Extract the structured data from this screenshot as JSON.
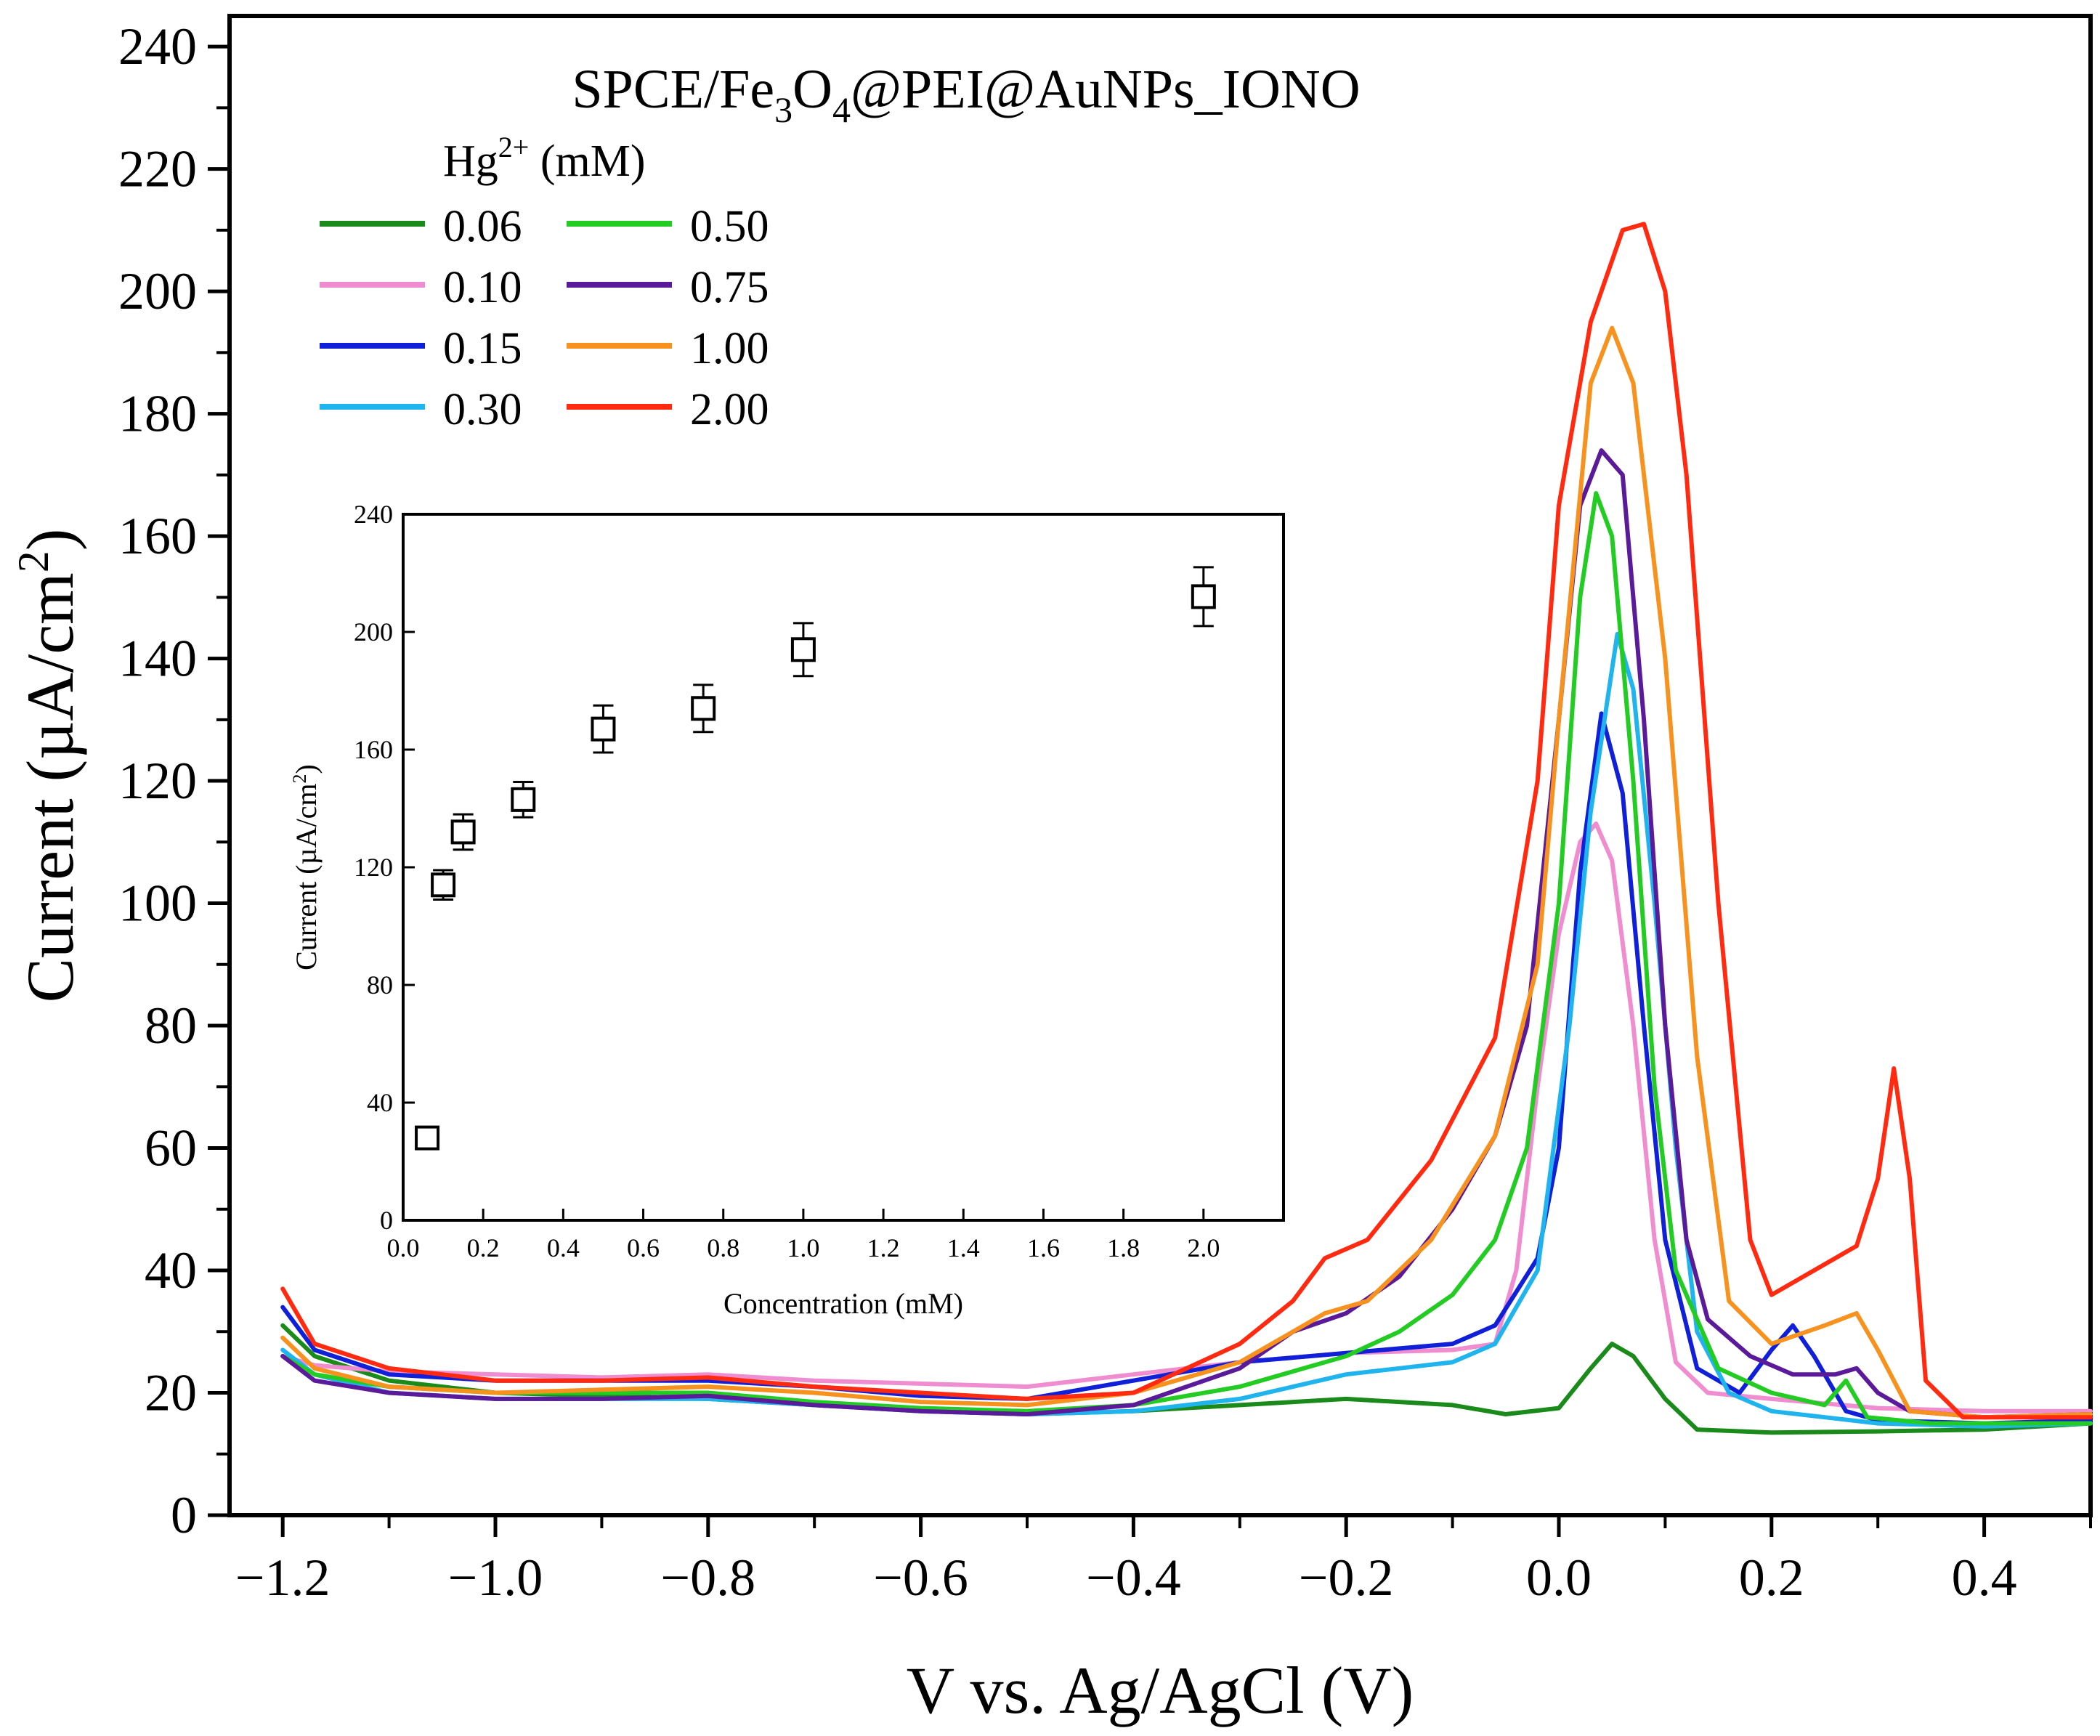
{
  "chart_data": [
    {
      "type": "line",
      "title_parts": {
        "a": "SPCE/Fe",
        "b": "3",
        "c": "O",
        "d": "4",
        "e": "@PEI@AuNPs_IONO"
      },
      "xlabel": "V vs. Ag/AgCl (V)",
      "ylabel_parts": {
        "a": "Current (µA/cm",
        "b": "2",
        "c": ")"
      },
      "xlim": [
        -1.25,
        0.5
      ],
      "ylim": [
        0,
        245
      ],
      "xticks": [
        -1.2,
        -1.0,
        -0.8,
        -0.6,
        -0.4,
        -0.2,
        0.0,
        0.2,
        0.4
      ],
      "xtick_labels": [
        "−1.2",
        "−1.0",
        "−0.8",
        "−0.6",
        "−0.4",
        "−0.2",
        "0.0",
        "0.2",
        "0.4"
      ],
      "yticks": [
        0,
        20,
        40,
        60,
        80,
        100,
        120,
        140,
        160,
        180,
        200,
        220,
        240
      ],
      "ytick_labels": [
        "0",
        "20",
        "40",
        "60",
        "80",
        "100",
        "120",
        "140",
        "160",
        "180",
        "200",
        "220",
        "240"
      ],
      "legend_title_parts": {
        "a": "Hg",
        "b": "2+",
        "c": " (mM)"
      },
      "legend_placement": "top-left",
      "series": [
        {
          "name": "0.06",
          "color": "#1a8a1a",
          "points": [
            [
              -1.2,
              31
            ],
            [
              -1.17,
              26
            ],
            [
              -1.1,
              22
            ],
            [
              -1.0,
              20
            ],
            [
              -0.9,
              19.5
            ],
            [
              -0.8,
              19
            ],
            [
              -0.7,
              18
            ],
            [
              -0.6,
              17
            ],
            [
              -0.5,
              16.5
            ],
            [
              -0.4,
              17
            ],
            [
              -0.3,
              18
            ],
            [
              -0.2,
              19
            ],
            [
              -0.1,
              18
            ],
            [
              -0.05,
              16.5
            ],
            [
              0.0,
              17.5
            ],
            [
              0.03,
              24
            ],
            [
              0.05,
              28
            ],
            [
              0.07,
              26
            ],
            [
              0.1,
              19
            ],
            [
              0.13,
              14
            ],
            [
              0.2,
              13.5
            ],
            [
              0.3,
              13.7
            ],
            [
              0.4,
              14
            ],
            [
              0.5,
              15
            ]
          ]
        },
        {
          "name": "0.10",
          "color": "#f08cd0",
          "points": [
            [
              -1.2,
              26
            ],
            [
              -1.17,
              24.5
            ],
            [
              -1.1,
              23.5
            ],
            [
              -1.0,
              23
            ],
            [
              -0.9,
              22.5
            ],
            [
              -0.8,
              23
            ],
            [
              -0.7,
              22
            ],
            [
              -0.6,
              21.5
            ],
            [
              -0.5,
              21
            ],
            [
              -0.4,
              23
            ],
            [
              -0.3,
              25
            ],
            [
              -0.2,
              26.5
            ],
            [
              -0.1,
              27
            ],
            [
              -0.06,
              28
            ],
            [
              -0.04,
              40
            ],
            [
              -0.02,
              70
            ],
            [
              0.0,
              95
            ],
            [
              0.02,
              110
            ],
            [
              0.035,
              113
            ],
            [
              0.05,
              107
            ],
            [
              0.07,
              80
            ],
            [
              0.09,
              45
            ],
            [
              0.11,
              25
            ],
            [
              0.14,
              20
            ],
            [
              0.2,
              19
            ],
            [
              0.3,
              17.5
            ],
            [
              0.4,
              17
            ],
            [
              0.5,
              17
            ]
          ]
        },
        {
          "name": "0.15",
          "color": "#1020d8",
          "points": [
            [
              -1.2,
              34
            ],
            [
              -1.17,
              27
            ],
            [
              -1.1,
              23
            ],
            [
              -1.0,
              22
            ],
            [
              -0.9,
              22
            ],
            [
              -0.8,
              22
            ],
            [
              -0.7,
              21
            ],
            [
              -0.6,
              19.5
            ],
            [
              -0.5,
              19
            ],
            [
              -0.4,
              22
            ],
            [
              -0.3,
              25
            ],
            [
              -0.2,
              26.5
            ],
            [
              -0.1,
              28
            ],
            [
              -0.06,
              31
            ],
            [
              -0.02,
              42
            ],
            [
              0.0,
              60
            ],
            [
              0.02,
              105
            ],
            [
              0.04,
              131
            ],
            [
              0.06,
              118
            ],
            [
              0.08,
              80
            ],
            [
              0.1,
              45
            ],
            [
              0.13,
              24
            ],
            [
              0.17,
              20
            ],
            [
              0.2,
              27
            ],
            [
              0.22,
              31
            ],
            [
              0.24,
              26
            ],
            [
              0.27,
              17
            ],
            [
              0.3,
              15.5
            ],
            [
              0.4,
              15
            ],
            [
              0.5,
              15.5
            ]
          ]
        },
        {
          "name": "0.30",
          "color": "#1fb4ee",
          "points": [
            [
              -1.2,
              27
            ],
            [
              -1.17,
              23
            ],
            [
              -1.1,
              20
            ],
            [
              -1.0,
              19
            ],
            [
              -0.9,
              19
            ],
            [
              -0.8,
              19
            ],
            [
              -0.7,
              18
            ],
            [
              -0.6,
              17
            ],
            [
              -0.5,
              16.5
            ],
            [
              -0.4,
              17
            ],
            [
              -0.3,
              19
            ],
            [
              -0.2,
              23
            ],
            [
              -0.15,
              24
            ],
            [
              -0.1,
              25
            ],
            [
              -0.06,
              28
            ],
            [
              -0.02,
              40
            ],
            [
              0.01,
              80
            ],
            [
              0.03,
              115
            ],
            [
              0.055,
              144
            ],
            [
              0.07,
              135
            ],
            [
              0.09,
              100
            ],
            [
              0.11,
              60
            ],
            [
              0.13,
              30
            ],
            [
              0.16,
              20
            ],
            [
              0.2,
              17
            ],
            [
              0.3,
              15
            ],
            [
              0.4,
              14.5
            ],
            [
              0.5,
              15
            ]
          ]
        },
        {
          "name": "0.50",
          "color": "#22cc22",
          "points": [
            [
              -1.2,
              26
            ],
            [
              -1.17,
              23
            ],
            [
              -1.1,
              21
            ],
            [
              -1.0,
              20
            ],
            [
              -0.9,
              20
            ],
            [
              -0.8,
              20
            ],
            [
              -0.7,
              18.5
            ],
            [
              -0.6,
              17.5
            ],
            [
              -0.5,
              17
            ],
            [
              -0.4,
              18
            ],
            [
              -0.3,
              21
            ],
            [
              -0.2,
              26
            ],
            [
              -0.15,
              30
            ],
            [
              -0.1,
              36
            ],
            [
              -0.06,
              45
            ],
            [
              -0.03,
              60
            ],
            [
              0.0,
              100
            ],
            [
              0.02,
              150
            ],
            [
              0.035,
              167
            ],
            [
              0.05,
              160
            ],
            [
              0.07,
              120
            ],
            [
              0.09,
              70
            ],
            [
              0.11,
              40
            ],
            [
              0.15,
              24
            ],
            [
              0.2,
              20
            ],
            [
              0.25,
              18
            ],
            [
              0.27,
              22
            ],
            [
              0.29,
              16
            ],
            [
              0.35,
              15
            ],
            [
              0.4,
              15
            ],
            [
              0.5,
              15
            ]
          ]
        },
        {
          "name": "0.75",
          "color": "#5a1a9a",
          "points": [
            [
              -1.2,
              26
            ],
            [
              -1.17,
              22
            ],
            [
              -1.1,
              20
            ],
            [
              -1.0,
              19
            ],
            [
              -0.9,
              19
            ],
            [
              -0.8,
              19.5
            ],
            [
              -0.7,
              18
            ],
            [
              -0.6,
              17
            ],
            [
              -0.5,
              16.5
            ],
            [
              -0.4,
              18
            ],
            [
              -0.3,
              24
            ],
            [
              -0.25,
              30
            ],
            [
              -0.2,
              33
            ],
            [
              -0.15,
              39
            ],
            [
              -0.1,
              50
            ],
            [
              -0.06,
              62
            ],
            [
              -0.03,
              80
            ],
            [
              0.0,
              130
            ],
            [
              0.02,
              165
            ],
            [
              0.04,
              174
            ],
            [
              0.06,
              170
            ],
            [
              0.08,
              130
            ],
            [
              0.1,
              80
            ],
            [
              0.12,
              45
            ],
            [
              0.14,
              32
            ],
            [
              0.18,
              26
            ],
            [
              0.22,
              23
            ],
            [
              0.26,
              23
            ],
            [
              0.28,
              24
            ],
            [
              0.3,
              20
            ],
            [
              0.33,
              17
            ],
            [
              0.4,
              16
            ],
            [
              0.5,
              16.5
            ]
          ]
        },
        {
          "name": "1.00",
          "color": "#f7921e",
          "points": [
            [
              -1.2,
              29
            ],
            [
              -1.17,
              24
            ],
            [
              -1.1,
              21
            ],
            [
              -1.0,
              20
            ],
            [
              -0.9,
              20.5
            ],
            [
              -0.8,
              21
            ],
            [
              -0.7,
              20
            ],
            [
              -0.6,
              18.5
            ],
            [
              -0.5,
              18
            ],
            [
              -0.4,
              20
            ],
            [
              -0.3,
              25
            ],
            [
              -0.25,
              30
            ],
            [
              -0.22,
              33
            ],
            [
              -0.18,
              35
            ],
            [
              -0.12,
              45
            ],
            [
              -0.06,
              62
            ],
            [
              -0.02,
              90
            ],
            [
              0.0,
              130
            ],
            [
              0.03,
              185
            ],
            [
              0.05,
              194
            ],
            [
              0.07,
              185
            ],
            [
              0.1,
              140
            ],
            [
              0.13,
              75
            ],
            [
              0.16,
              35
            ],
            [
              0.2,
              28
            ],
            [
              0.25,
              31
            ],
            [
              0.28,
              33
            ],
            [
              0.3,
              27
            ],
            [
              0.33,
              17
            ],
            [
              0.4,
              16
            ],
            [
              0.5,
              16.5
            ]
          ]
        },
        {
          "name": "2.00",
          "color": "#ff2a10",
          "points": [
            [
              -1.2,
              37
            ],
            [
              -1.17,
              28
            ],
            [
              -1.1,
              24
            ],
            [
              -1.0,
              22
            ],
            [
              -0.9,
              22
            ],
            [
              -0.8,
              22.5
            ],
            [
              -0.7,
              21
            ],
            [
              -0.6,
              20
            ],
            [
              -0.5,
              19
            ],
            [
              -0.4,
              20
            ],
            [
              -0.3,
              28
            ],
            [
              -0.25,
              35
            ],
            [
              -0.22,
              42
            ],
            [
              -0.18,
              45
            ],
            [
              -0.12,
              58
            ],
            [
              -0.06,
              78
            ],
            [
              -0.02,
              120
            ],
            [
              0.0,
              165
            ],
            [
              0.03,
              195
            ],
            [
              0.06,
              210
            ],
            [
              0.08,
              211
            ],
            [
              0.1,
              200
            ],
            [
              0.12,
              170
            ],
            [
              0.15,
              100
            ],
            [
              0.18,
              45
            ],
            [
              0.2,
              36
            ],
            [
              0.24,
              40
            ],
            [
              0.28,
              44
            ],
            [
              0.3,
              55
            ],
            [
              0.315,
              73
            ],
            [
              0.33,
              55
            ],
            [
              0.345,
              22
            ],
            [
              0.38,
              16
            ],
            [
              0.5,
              16
            ]
          ]
        }
      ]
    },
    {
      "type": "scatter",
      "panel": "inset",
      "xlabel": "Concentration (mM)",
      "ylabel_parts": {
        "a": "Current (µA/cm",
        "b": "2",
        "c": ")"
      },
      "xlim": [
        0.0,
        2.2
      ],
      "ylim": [
        0,
        240
      ],
      "xticks": [
        0.0,
        0.2,
        0.4,
        0.6,
        0.8,
        1.0,
        1.2,
        1.4,
        1.6,
        1.8,
        2.0
      ],
      "xtick_labels": [
        "0.0",
        "0.2",
        "0.4",
        "0.6",
        "0.8",
        "1.0",
        "1.2",
        "1.4",
        "1.6",
        "1.8",
        "2.0"
      ],
      "yticks": [
        0,
        40,
        80,
        120,
        160,
        200,
        240
      ],
      "ytick_labels": [
        "0",
        "40",
        "80",
        "120",
        "160",
        "200",
        "240"
      ],
      "x": [
        0.06,
        0.1,
        0.15,
        0.3,
        0.5,
        0.75,
        1.0,
        2.0
      ],
      "y": [
        28,
        114,
        132,
        143,
        167,
        174,
        194,
        212
      ],
      "yerr": [
        3,
        5,
        6,
        6,
        8,
        8,
        9,
        10
      ]
    }
  ]
}
